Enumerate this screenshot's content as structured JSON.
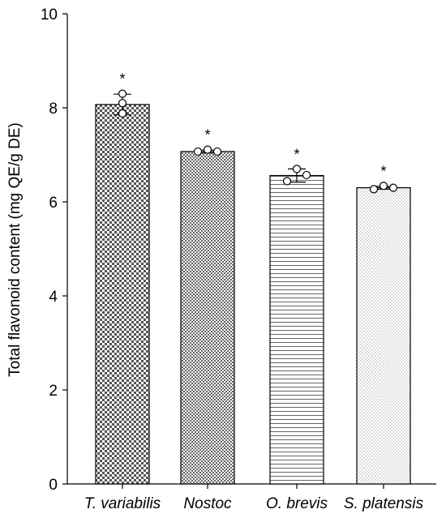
{
  "chart_data": {
    "type": "bar",
    "title": "",
    "xlabel": "",
    "ylabel": "Total flavonoid content (mg QE/g DE)",
    "ylim": [
      0,
      10
    ],
    "yticks": [
      0,
      2,
      4,
      6,
      8,
      10
    ],
    "categories": [
      "T. variabilis",
      "Nostoc",
      "O. brevis",
      "S. platensis"
    ],
    "values": [
      8.07,
      7.07,
      6.56,
      6.3
    ],
    "error": [
      0.22,
      0.03,
      0.14,
      0.03
    ],
    "points": [
      [
        8.3,
        8.1,
        7.88
      ],
      [
        7.07,
        7.11,
        7.07
      ],
      [
        6.44,
        6.7,
        6.57
      ],
      [
        6.27,
        6.34,
        6.3
      ]
    ],
    "significance": [
      "*",
      "*",
      "*",
      "*"
    ],
    "patterns": [
      "checker-coarse",
      "checker-fine",
      "horizontal-lines",
      "dots"
    ],
    "colors": {
      "bar_fill": "#ffffff",
      "pattern": "#4a4a4a",
      "axis": "#000000"
    }
  }
}
